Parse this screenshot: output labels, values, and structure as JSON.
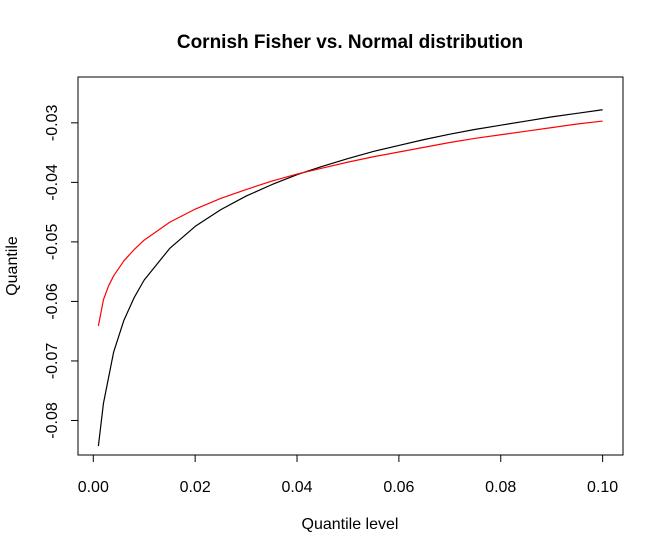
{
  "chart_data": {
    "type": "line",
    "title": "Cornish Fisher vs. Normal distribution",
    "xlabel": "Quantile level",
    "ylabel": "Quantile",
    "xlim": [
      -0.003,
      0.104
    ],
    "ylim": [
      -0.0858,
      -0.0223
    ],
    "x_ticks": [
      0.0,
      0.02,
      0.04,
      0.06,
      0.08,
      0.1
    ],
    "x_tick_labels": [
      "0.00",
      "0.02",
      "0.04",
      "0.06",
      "0.08",
      "0.10"
    ],
    "y_ticks": [
      -0.08,
      -0.07,
      -0.06,
      -0.05,
      -0.04,
      -0.03
    ],
    "y_tick_labels": [
      "-0.08",
      "-0.07",
      "-0.06",
      "-0.05",
      "-0.04",
      "-0.03"
    ],
    "grid": false,
    "legend": "none",
    "series": [
      {
        "color": "#000000",
        "x": [
          0.001,
          0.002,
          0.004,
          0.006,
          0.008,
          0.01,
          0.015,
          0.02,
          0.025,
          0.03,
          0.035,
          0.04,
          0.045,
          0.05,
          0.055,
          0.06,
          0.065,
          0.07,
          0.075,
          0.08,
          0.085,
          0.09,
          0.095,
          0.1
        ],
        "y": [
          -0.0843,
          -0.0771,
          -0.0685,
          -0.0632,
          -0.0594,
          -0.0564,
          -0.0511,
          -0.0474,
          -0.0446,
          -0.0423,
          -0.0404,
          -0.0387,
          -0.0373,
          -0.036,
          -0.0348,
          -0.0338,
          -0.0328,
          -0.0319,
          -0.0311,
          -0.0304,
          -0.0297,
          -0.029,
          -0.0284,
          -0.0278
        ]
      },
      {
        "color": "#ff0000",
        "x": [
          0.001,
          0.002,
          0.003,
          0.004,
          0.006,
          0.008,
          0.01,
          0.015,
          0.02,
          0.025,
          0.03,
          0.035,
          0.04,
          0.045,
          0.05,
          0.055,
          0.06,
          0.065,
          0.07,
          0.075,
          0.08,
          0.085,
          0.09,
          0.095,
          0.1
        ],
        "y": [
          -0.0641,
          -0.0597,
          -0.0574,
          -0.0557,
          -0.0532,
          -0.0513,
          -0.0497,
          -0.0467,
          -0.0445,
          -0.0427,
          -0.0412,
          -0.0398,
          -0.0386,
          -0.0376,
          -0.0366,
          -0.0357,
          -0.0349,
          -0.0341,
          -0.0333,
          -0.0326,
          -0.032,
          -0.0314,
          -0.0308,
          -0.0302,
          -0.0297
        ]
      }
    ]
  }
}
